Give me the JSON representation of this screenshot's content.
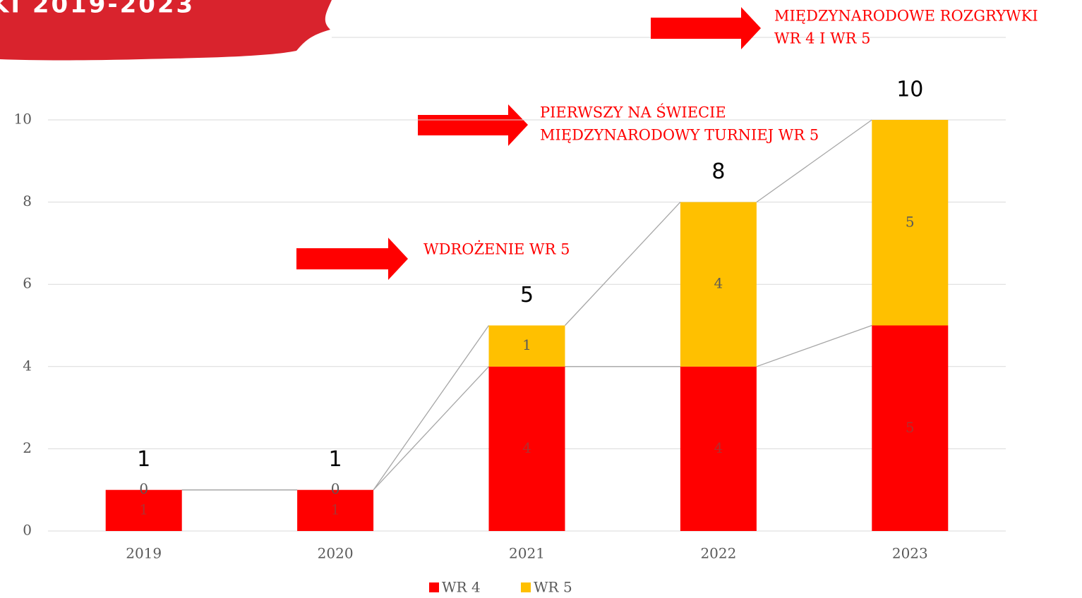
{
  "chart_data": {
    "type": "stacked_bar",
    "title": "KI 2019-2023",
    "categories": [
      "2019",
      "2020",
      "2021",
      "2022",
      "2023"
    ],
    "series": [
      {
        "name": "WR 4",
        "color": "#ff0000",
        "values": [
          1,
          1,
          4,
          4,
          5
        ]
      },
      {
        "name": "WR 5",
        "color": "#ffc000",
        "values": [
          0,
          0,
          1,
          4,
          5
        ]
      }
    ],
    "totals": [
      1,
      1,
      5,
      8,
      10
    ],
    "ylim": [
      0,
      10
    ],
    "yticks": [
      0,
      2,
      4,
      6,
      8,
      10
    ],
    "grid": true,
    "legend": "bottom",
    "annotations": [
      {
        "lines": [
          "WDROŻENIE  WR 5"
        ]
      },
      {
        "lines": [
          "PIERWSZY NA ŚWIECIE",
          "MIĘDZYNARODOWY TURNIEJ WR 5"
        ]
      },
      {
        "lines": [
          "MIĘDZYNARODOWE ROZGRYWKI",
          "WR 4 I WR 5"
        ]
      }
    ]
  }
}
